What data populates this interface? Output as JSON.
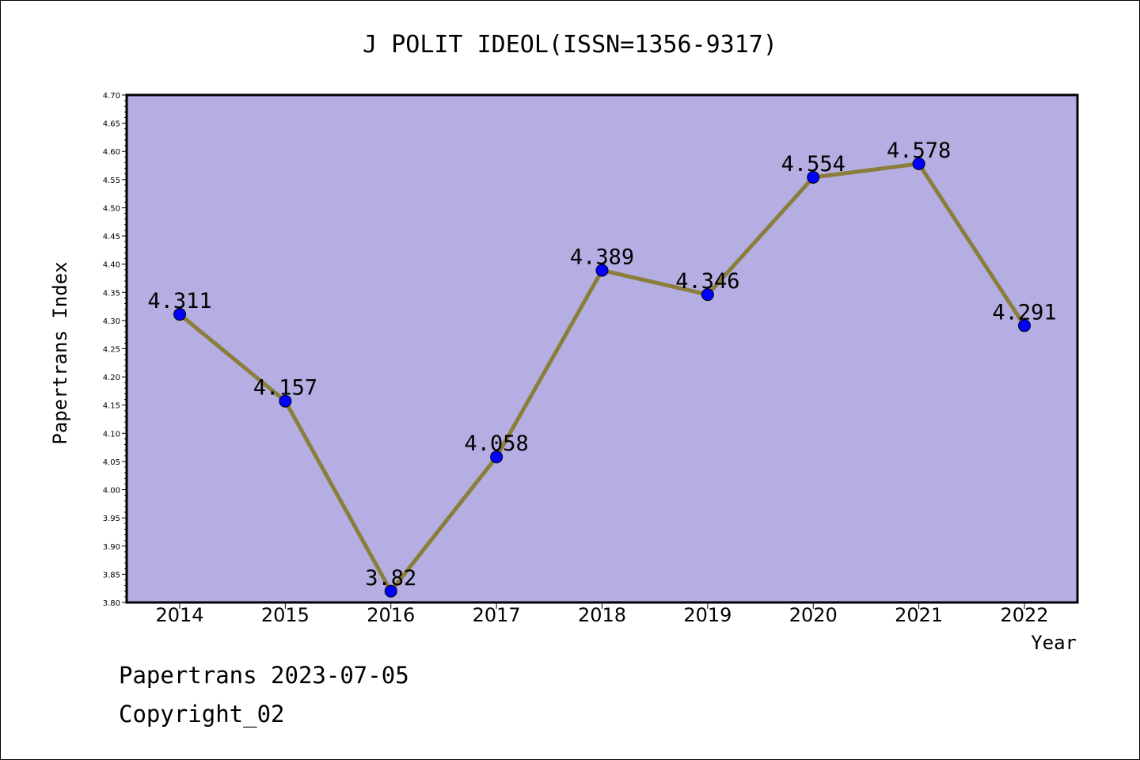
{
  "chart_data": {
    "type": "line",
    "title": "J POLIT IDEOL(ISSN=1356-9317)",
    "xlabel": "Year",
    "ylabel": "Papertrans Index",
    "categories": [
      "2014",
      "2015",
      "2016",
      "2017",
      "2018",
      "2019",
      "2020",
      "2021",
      "2022"
    ],
    "series": [
      {
        "values": [
          4.311,
          4.157,
          3.82,
          4.058,
          4.389,
          4.346,
          4.554,
          4.578,
          4.291
        ],
        "labels": [
          "4.311",
          "4.157",
          "3.82",
          "4.058",
          "4.389",
          "4.346",
          "4.554",
          "4.578",
          "4.291"
        ]
      }
    ],
    "ylim": [
      3.8,
      4.7
    ],
    "yticks": [
      "3.80",
      "3.85",
      "3.90",
      "3.95",
      "4.00",
      "4.05",
      "4.10",
      "4.15",
      "4.20",
      "4.25",
      "4.30",
      "4.35",
      "4.40",
      "4.45",
      "4.50",
      "4.55",
      "4.60",
      "4.65",
      "4.70"
    ],
    "grid": false,
    "colors": {
      "plot_background": "#b4aee2",
      "line": "#8b7d3a",
      "marker": "#0000ff"
    }
  },
  "footer": {
    "line1": "Papertrans 2023-07-05",
    "line2": "Copyright_02"
  }
}
